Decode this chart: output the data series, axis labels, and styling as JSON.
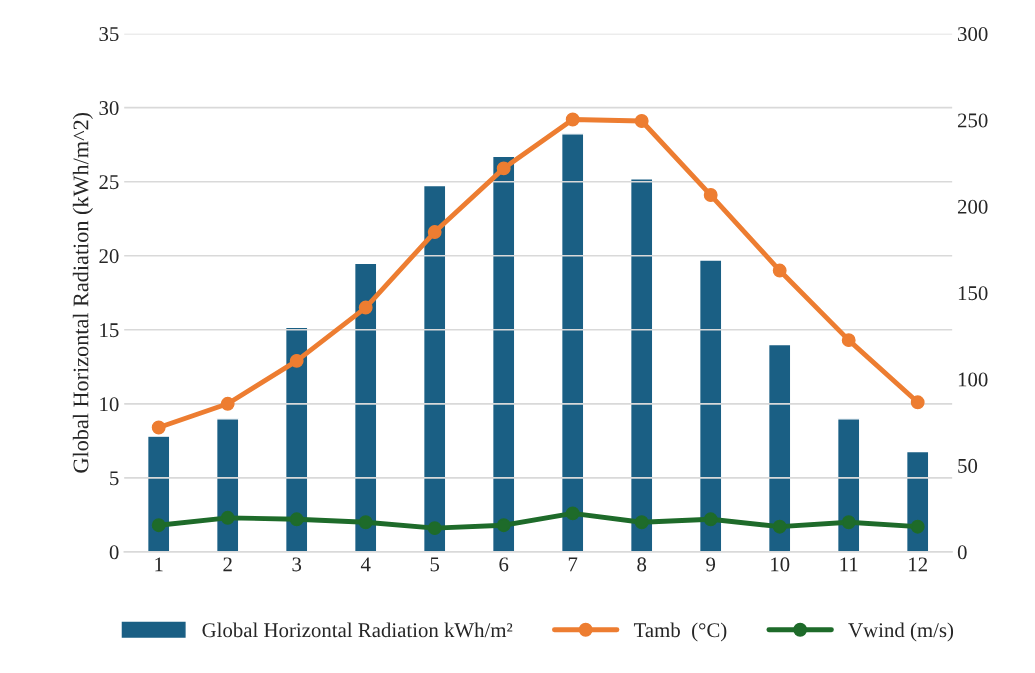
{
  "chart_data": {
    "type": "line",
    "ylabel": "Global Horizontal Radiation (kWh/m^2)",
    "categories": [
      "1",
      "2",
      "3",
      "4",
      "5",
      "6",
      "7",
      "8",
      "9",
      "10",
      "11",
      "12"
    ],
    "series": [
      {
        "name": "Global Horizontal Radiation kWh/m²",
        "type": "bar",
        "axis": "y2",
        "color": "#1a5f84",
        "values": [
          67,
          77,
          130,
          167,
          212,
          229,
          242,
          216,
          169,
          120,
          77,
          58
        ]
      },
      {
        "name": "Tamb  (°C)",
        "color": "#ed7d31",
        "values": [
          8.4,
          10.0,
          12.9,
          16.5,
          21.6,
          25.9,
          29.2,
          29.1,
          24.1,
          19.0,
          14.3,
          10.1
        ]
      },
      {
        "name": "Vwind (m/s)",
        "color": "#1e6b2a",
        "values": [
          1.8,
          2.3,
          2.2,
          2.0,
          1.6,
          1.8,
          2.6,
          2.0,
          2.2,
          1.7,
          2.0,
          1.7
        ]
      }
    ],
    "ylim": [
      0,
      35
    ],
    "yticks": [
      0,
      5,
      10,
      15,
      20,
      25,
      30,
      35
    ],
    "y2lim": [
      0,
      300
    ],
    "y2ticks": [
      0,
      50,
      100,
      150,
      200,
      250,
      300
    ],
    "grid": "y",
    "legend": "bottom",
    "marker": "circle",
    "line_style": "solid"
  }
}
